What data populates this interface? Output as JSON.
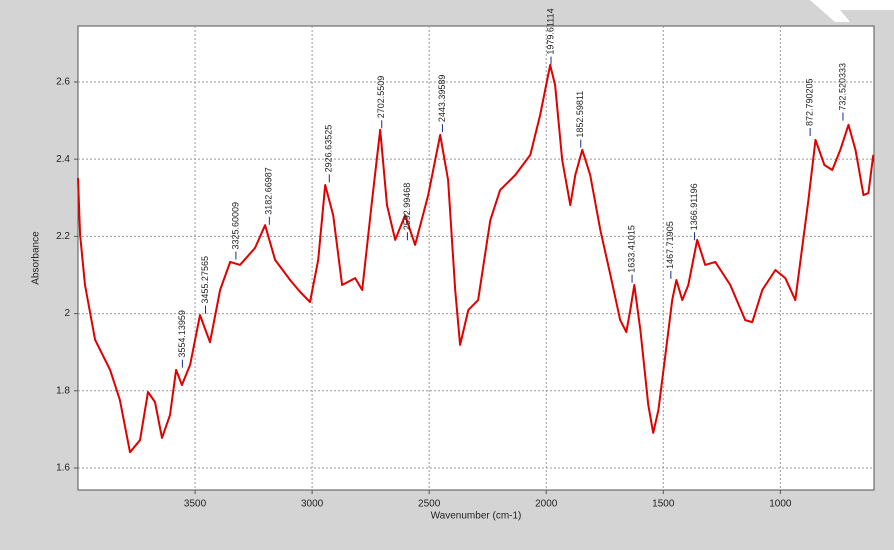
{
  "chart_data": {
    "type": "line",
    "xlabel": "Wavenumber (cm-1)",
    "ylabel": "Absorbance",
    "xlim": [
      4000,
      600
    ],
    "ylim": [
      1.543,
      2.745
    ],
    "xticks": [
      3500,
      3000,
      2500,
      2000,
      1500,
      1000
    ],
    "yticks": [
      1.6,
      1.8,
      2,
      2.2,
      2.4,
      2.6
    ],
    "grid": true,
    "color": "#e00000",
    "x": [
      4000,
      3991,
      3970,
      3927,
      3863,
      3821,
      3778,
      3735,
      3701,
      3671,
      3641,
      3607,
      3581,
      3556,
      3521,
      3479,
      3436,
      3393,
      3350,
      3308,
      3244,
      3201,
      3158,
      3094,
      3051,
      3009,
      2974,
      2944,
      2910,
      2872,
      2816,
      2786,
      2744,
      2709,
      2680,
      2645,
      2603,
      2560,
      2504,
      2453,
      2419,
      2389,
      2368,
      2333,
      2291,
      2239,
      2197,
      2132,
      2068,
      2026,
      1983,
      1962,
      1932,
      1897,
      1876,
      1846,
      1812,
      1769,
      1726,
      1684,
      1658,
      1641,
      1624,
      1598,
      1564,
      1543,
      1521,
      1491,
      1462,
      1444,
      1419,
      1393,
      1355,
      1321,
      1278,
      1214,
      1150,
      1120,
      1077,
      1021,
      979,
      936,
      880,
      850,
      812,
      778,
      744,
      709,
      679,
      645,
      624,
      603
    ],
    "y": [
      2.351,
      2.204,
      2.074,
      1.932,
      1.854,
      1.776,
      1.641,
      1.672,
      1.797,
      1.771,
      1.678,
      1.737,
      1.854,
      1.815,
      1.867,
      1.996,
      1.926,
      2.061,
      2.134,
      2.126,
      2.17,
      2.229,
      2.139,
      2.087,
      2.056,
      2.03,
      2.139,
      2.333,
      2.255,
      2.074,
      2.092,
      2.061,
      2.294,
      2.476,
      2.281,
      2.191,
      2.255,
      2.178,
      2.307,
      2.463,
      2.346,
      2.061,
      1.919,
      2.009,
      2.035,
      2.242,
      2.32,
      2.359,
      2.411,
      2.514,
      2.644,
      2.592,
      2.398,
      2.281,
      2.359,
      2.424,
      2.359,
      2.217,
      2.1,
      1.983,
      1.952,
      2.009,
      2.074,
      1.957,
      1.763,
      1.691,
      1.75,
      1.893,
      2.035,
      2.087,
      2.035,
      2.074,
      2.191,
      2.126,
      2.134,
      2.074,
      1.983,
      1.978,
      2.061,
      2.113,
      2.092,
      2.035,
      2.294,
      2.45,
      2.385,
      2.372,
      2.424,
      2.489,
      2.424,
      2.307,
      2.312,
      2.411
    ],
    "peaks": [
      {
        "x": 3554.13959,
        "y": 1.86
      },
      {
        "x": 3455.27565,
        "y": 2.0
      },
      {
        "x": 3325.60009,
        "y": 2.14
      },
      {
        "x": 3182.66987,
        "y": 2.23
      },
      {
        "x": 2926.63525,
        "y": 2.34
      },
      {
        "x": 2702.5509,
        "y": 2.48
      },
      {
        "x": 2592.99468,
        "y": 2.19
      },
      {
        "x": 2443.39589,
        "y": 2.47
      },
      {
        "x": 1979.61114,
        "y": 2.645
      },
      {
        "x": 1852.59811,
        "y": 2.43
      },
      {
        "x": 1633.41015,
        "y": 2.08
      },
      {
        "x": 1467.71905,
        "y": 2.09
      },
      {
        "x": 1366.91196,
        "y": 2.19
      },
      {
        "x": 872.790205,
        "y": 2.46
      },
      {
        "x": 732.520333,
        "y": 2.5
      }
    ]
  }
}
